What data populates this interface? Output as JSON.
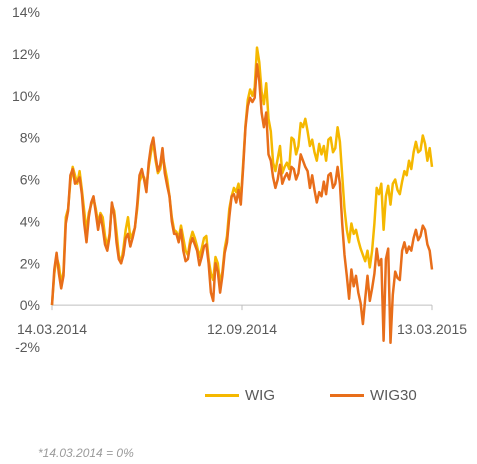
{
  "chart_data": {
    "type": "line",
    "title": "",
    "xlabel": "",
    "ylabel": "",
    "ylim": [
      -2,
      14
    ],
    "y_ticks": [
      "-2%",
      "0%",
      "2%",
      "4%",
      "6%",
      "8%",
      "10%",
      "12%",
      "14%"
    ],
    "x_ticks": [
      "14.03.2014",
      "12.09.2014",
      "13.03.2015"
    ],
    "grid": false,
    "legend_position": "bottom",
    "footnote": "*14.03.2014 = 0%",
    "series": [
      {
        "name": "WIG",
        "color": "#f5b800",
        "values": [
          0,
          1.5,
          2.3,
          1.9,
          1.0,
          1.6,
          4.2,
          4.6,
          5.9,
          6.6,
          6.2,
          5.8,
          6.4,
          5.5,
          4.5,
          3.5,
          4.4,
          4.8,
          5.1,
          4.6,
          3.9,
          4.4,
          4.2,
          3.3,
          2.8,
          3.4,
          4.8,
          4.5,
          3.5,
          2.4,
          2.0,
          2.7,
          3.6,
          4.2,
          3.2,
          3.4,
          3.7,
          4.6,
          5.9,
          6.2,
          6.1,
          5.6,
          6.6,
          7.3,
          7.8,
          6.9,
          6.3,
          6.5,
          7.2,
          6.6,
          6.0,
          5.2,
          4.2,
          3.6,
          3.5,
          3.2,
          3.8,
          3.2,
          2.6,
          2.4,
          3.1,
          3.5,
          3.2,
          2.8,
          2.3,
          2.7,
          3.2,
          3.3,
          2.2,
          1.5,
          1.2,
          2.3,
          2.0,
          1.0,
          1.6,
          2.7,
          3.3,
          4.6,
          5.2,
          5.6,
          5.4,
          5.8,
          5.0,
          6.8,
          8.6,
          9.8,
          10.3,
          10.0,
          10.4,
          12.3,
          11.6,
          10.2,
          9.6,
          10.6,
          8.9,
          8.3,
          6.8,
          6.4,
          7.0,
          7.6,
          6.3,
          6.6,
          6.8,
          6.5,
          8.0,
          7.9,
          7.2,
          7.6,
          8.7,
          8.5,
          8.9,
          8.3,
          7.6,
          7.9,
          7.3,
          6.9,
          7.7,
          7.2,
          7.6,
          6.9,
          7.9,
          8.0,
          7.3,
          7.5,
          8.5,
          7.8,
          6.2,
          4.6,
          3.6,
          3.0,
          3.9,
          3.4,
          3.6,
          3.1,
          2.7,
          2.4,
          2.1,
          2.6,
          1.8,
          2.6,
          3.9,
          5.6,
          5.3,
          5.8,
          3.6,
          5.2,
          5.7,
          4.8,
          5.8,
          6.0,
          5.5,
          5.3,
          5.9,
          6.4,
          6.2,
          6.9,
          6.5,
          7.3,
          7.8,
          7.3,
          7.4,
          8.1,
          7.7,
          6.9,
          7.5,
          6.6
        ],
        "x_start": "14.03.2014",
        "x_end": "13.03.2015"
      },
      {
        "name": "WIG30",
        "color": "#e86e1a",
        "values": [
          0,
          1.7,
          2.5,
          1.5,
          0.8,
          1.4,
          3.9,
          4.5,
          6.2,
          6.5,
          5.8,
          5.9,
          6.1,
          5.3,
          3.9,
          3.0,
          4.2,
          4.9,
          5.2,
          4.4,
          3.6,
          4.3,
          3.7,
          2.9,
          2.6,
          3.3,
          4.9,
          4.3,
          3.0,
          2.2,
          2.0,
          2.4,
          3.2,
          3.4,
          2.8,
          3.2,
          3.7,
          4.8,
          6.2,
          6.5,
          6.0,
          5.4,
          6.8,
          7.6,
          8.0,
          7.1,
          6.4,
          6.7,
          7.5,
          6.3,
          5.7,
          5.2,
          4.0,
          3.4,
          3.4,
          3.0,
          3.6,
          2.6,
          2.1,
          2.2,
          2.9,
          3.2,
          2.9,
          2.6,
          1.9,
          2.3,
          2.8,
          2.9,
          2.0,
          0.6,
          0.2,
          2.0,
          1.6,
          0.6,
          1.4,
          2.5,
          3.0,
          4.2,
          5.2,
          5.3,
          4.9,
          5.5,
          4.8,
          6.6,
          8.5,
          9.5,
          9.9,
          9.7,
          9.9,
          11.5,
          10.7,
          9.2,
          8.5,
          9.2,
          7.2,
          6.9,
          6.1,
          5.6,
          6.0,
          6.7,
          5.8,
          6.1,
          6.3,
          6.0,
          6.6,
          6.5,
          6.0,
          6.3,
          7.2,
          6.9,
          6.6,
          6.4,
          5.6,
          6.2,
          5.5,
          4.9,
          5.4,
          5.2,
          5.9,
          5.3,
          6.2,
          6.3,
          5.6,
          5.8,
          6.6,
          5.8,
          3.9,
          2.4,
          1.4,
          0.3,
          1.7,
          0.9,
          1.4,
          0.6,
          0.1,
          -0.9,
          0.3,
          1.4,
          0.2,
          0.8,
          1.5,
          2.7,
          1.9,
          2.2,
          -1.7,
          2.2,
          2.7,
          -1.8,
          0.5,
          1.6,
          1.3,
          1.2,
          2.6,
          3.0,
          2.5,
          2.8,
          2.6,
          3.2,
          3.6,
          3.1,
          3.3,
          3.8,
          3.6,
          2.9,
          2.6,
          1.7
        ],
        "x_start": "14.03.2014",
        "x_end": "13.03.2015"
      }
    ]
  }
}
